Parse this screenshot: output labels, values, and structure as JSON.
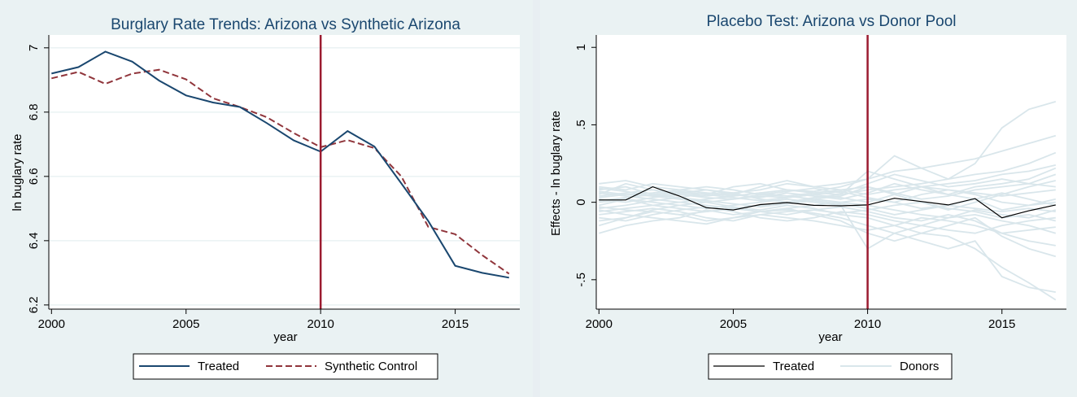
{
  "colors": {
    "treated_left": "#1a476f",
    "synthetic": "#90353b",
    "treatment_line": "#9b1b30",
    "treated_right": "#000000",
    "donors": "#d9e6eb",
    "title": "#1a476f",
    "grid": "#eaf2f3",
    "plot_bg": "#ffffff",
    "outer_bg": "#eaf2f3"
  },
  "chart_data": [
    {
      "type": "line",
      "title": "Burglary Rate Trends: Arizona vs Synthetic Arizona",
      "xlabel": "year",
      "ylabel": "ln buglary rate",
      "xlim": [
        1999.9,
        2017.4
      ],
      "ylim": [
        6.187,
        7.04
      ],
      "xticks": [
        2000,
        2005,
        2010,
        2015
      ],
      "xtick_labels": [
        "2000",
        "2005",
        "2010",
        "2015"
      ],
      "yticks": [
        6.2,
        6.4,
        6.6,
        6.8,
        7.0
      ],
      "ytick_labels": [
        "6.2",
        "6.4",
        "6.6",
        "6.8",
        "7"
      ],
      "grid": true,
      "treatment_year": 2010,
      "legend_position": "bottom",
      "x": [
        2000,
        2001,
        2002,
        2003,
        2004,
        2005,
        2006,
        2007,
        2008,
        2009,
        2010,
        2011,
        2012,
        2013,
        2014,
        2015,
        2016,
        2017
      ],
      "series": [
        {
          "name": "Treated",
          "style": "solid",
          "values": [
            6.92,
            6.94,
            6.988,
            6.957,
            6.898,
            6.852,
            6.83,
            6.816,
            6.766,
            6.712,
            6.677,
            6.741,
            6.693,
            6.578,
            6.461,
            6.322,
            6.3,
            6.285
          ]
        },
        {
          "name": "Synthetic Control",
          "style": "dashed",
          "values": [
            6.905,
            6.925,
            6.888,
            6.92,
            6.932,
            6.902,
            6.843,
            6.816,
            6.784,
            6.735,
            6.691,
            6.713,
            6.688,
            6.6,
            6.443,
            6.42,
            6.355,
            6.297
          ]
        }
      ]
    },
    {
      "type": "line",
      "title": "Placebo Test: Arizona vs Donor Pool",
      "xlabel": "year",
      "ylabel": "Effects - ln buglary rate",
      "xlim": [
        1999.9,
        2017.4
      ],
      "ylim": [
        -0.69,
        1.08
      ],
      "xticks": [
        2000,
        2005,
        2010,
        2015
      ],
      "xtick_labels": [
        "2000",
        "2005",
        "2010",
        "2015"
      ],
      "yticks": [
        -0.5,
        0,
        0.5,
        1
      ],
      "ytick_labels": [
        "-.5",
        "0",
        ".5",
        "1"
      ],
      "grid": false,
      "treatment_year": 2010,
      "legend_position": "bottom",
      "x": [
        2000,
        2001,
        2002,
        2003,
        2004,
        2005,
        2006,
        2007,
        2008,
        2009,
        2010,
        2011,
        2012,
        2013,
        2014,
        2015,
        2016,
        2017
      ],
      "series": [
        {
          "name": "Treated",
          "values": [
            0.015,
            0.015,
            0.1,
            0.04,
            -0.035,
            -0.05,
            -0.015,
            -0.002,
            -0.02,
            -0.023,
            -0.017,
            0.026,
            0.005,
            -0.017,
            0.024,
            -0.1,
            -0.055,
            -0.017
          ]
        },
        {
          "name": "Donors",
          "lines": [
            [
              0.08,
              0.1,
              0.05,
              0.03,
              0.06,
              0.04,
              0.06,
              0.08,
              0.07,
              0.1,
              0.15,
              0.3,
              0.22,
              0.15,
              0.25,
              0.48,
              0.6,
              0.65
            ],
            [
              -0.2,
              -0.15,
              -0.12,
              -0.1,
              -0.05,
              -0.08,
              -0.06,
              -0.05,
              -0.07,
              -0.1,
              -0.15,
              -0.2,
              -0.25,
              -0.3,
              -0.25,
              -0.48,
              -0.55,
              -0.58
            ],
            [
              -0.12,
              -0.1,
              -0.05,
              -0.02,
              0.0,
              -0.03,
              -0.05,
              -0.02,
              -0.04,
              -0.08,
              -0.1,
              -0.15,
              -0.2,
              -0.22,
              -0.3,
              -0.42,
              -0.52,
              -0.63
            ],
            [
              0.1,
              0.08,
              0.12,
              0.1,
              0.08,
              0.06,
              0.08,
              0.12,
              0.1,
              0.12,
              0.15,
              0.2,
              0.22,
              0.25,
              0.28,
              0.33,
              0.38,
              0.43
            ],
            [
              0.05,
              0.12,
              0.08,
              0.06,
              0.05,
              0.1,
              0.12,
              0.08,
              0.06,
              0.05,
              0.08,
              0.1,
              0.12,
              0.15,
              0.18,
              0.2,
              0.25,
              0.32
            ],
            [
              -0.05,
              -0.08,
              -0.1,
              -0.12,
              -0.14,
              -0.1,
              -0.08,
              -0.1,
              -0.12,
              -0.15,
              -0.18,
              -0.15,
              -0.1,
              -0.12,
              -0.15,
              -0.2,
              -0.25,
              -0.28
            ],
            [
              0.12,
              0.14,
              0.1,
              0.08,
              0.06,
              0.05,
              0.1,
              0.14,
              0.1,
              0.08,
              0.05,
              0.08,
              0.1,
              0.12,
              0.14,
              0.18,
              0.2,
              0.24
            ],
            [
              0.0,
              0.02,
              -0.02,
              -0.04,
              -0.06,
              -0.04,
              -0.02,
              0.0,
              0.02,
              0.0,
              -0.02,
              -0.05,
              -0.08,
              -0.1,
              -0.08,
              -0.12,
              -0.15,
              -0.2
            ],
            [
              0.03,
              0.05,
              0.04,
              0.06,
              0.08,
              0.05,
              0.03,
              0.06,
              0.04,
              0.02,
              0.06,
              0.12,
              0.08,
              0.05,
              0.1,
              0.12,
              0.15,
              0.22
            ],
            [
              -0.08,
              -0.06,
              -0.04,
              -0.06,
              -0.1,
              -0.12,
              -0.08,
              -0.06,
              -0.05,
              -0.07,
              -0.05,
              -0.02,
              0.0,
              -0.04,
              -0.06,
              -0.1,
              -0.08,
              -0.12
            ],
            [
              0.06,
              0.04,
              0.02,
              0.0,
              0.02,
              0.04,
              0.06,
              0.04,
              0.02,
              0.04,
              0.1,
              0.06,
              0.02,
              0.04,
              0.08,
              0.1,
              0.12,
              0.18
            ],
            [
              -0.03,
              -0.05,
              -0.06,
              -0.08,
              -0.06,
              -0.04,
              -0.06,
              -0.08,
              -0.05,
              -0.03,
              -0.06,
              -0.1,
              -0.12,
              -0.08,
              -0.12,
              -0.2,
              -0.18,
              -0.16
            ],
            [
              0.04,
              0.06,
              0.08,
              0.05,
              0.03,
              0.02,
              0.04,
              0.03,
              0.05,
              0.07,
              0.03,
              0.0,
              0.05,
              0.08,
              0.06,
              0.04,
              0.06,
              0.08
            ],
            [
              -0.1,
              -0.12,
              -0.08,
              -0.05,
              -0.03,
              -0.06,
              -0.1,
              -0.12,
              -0.1,
              -0.06,
              -0.08,
              -0.12,
              -0.15,
              -0.18,
              -0.2,
              -0.15,
              -0.12,
              -0.1
            ],
            [
              0.02,
              0.0,
              0.03,
              0.05,
              0.04,
              0.06,
              0.02,
              0.0,
              0.03,
              0.05,
              0.2,
              0.15,
              0.1,
              0.05,
              0.02,
              -0.05,
              -0.02,
              0.02
            ],
            [
              -0.02,
              0.02,
              0.0,
              -0.02,
              -0.04,
              -0.02,
              0.0,
              0.02,
              0.0,
              -0.02,
              -0.3,
              -0.2,
              -0.15,
              -0.1,
              -0.05,
              -0.08,
              -0.1,
              -0.05
            ],
            [
              0.07,
              0.05,
              0.06,
              0.08,
              0.1,
              0.08,
              0.05,
              0.04,
              0.06,
              0.08,
              0.1,
              0.05,
              0.0,
              -0.05,
              0.0,
              0.05,
              0.1,
              0.14
            ],
            [
              -0.06,
              -0.04,
              -0.02,
              0.0,
              -0.02,
              -0.04,
              -0.06,
              -0.04,
              -0.02,
              0.0,
              0.02,
              0.0,
              -0.04,
              -0.02,
              -0.04,
              -0.06,
              -0.04,
              -0.06
            ],
            [
              0.09,
              0.07,
              0.04,
              0.02,
              0.0,
              0.02,
              0.05,
              0.07,
              0.09,
              0.06,
              0.12,
              0.18,
              0.14,
              0.1,
              0.12,
              0.15,
              0.12,
              0.1
            ],
            [
              -0.15,
              -0.1,
              -0.06,
              -0.08,
              -0.12,
              -0.1,
              -0.06,
              -0.04,
              -0.08,
              -0.12,
              -0.2,
              -0.25,
              -0.2,
              -0.15,
              -0.1,
              -0.22,
              -0.3,
              -0.35
            ],
            [
              0.01,
              0.03,
              0.05,
              0.07,
              0.05,
              0.03,
              0.01,
              0.03,
              0.05,
              0.03,
              0.0,
              0.05,
              0.1,
              0.08,
              0.05,
              0.0,
              -0.02,
              0.0
            ],
            [
              -0.04,
              -0.02,
              0.01,
              0.03,
              0.01,
              -0.01,
              -0.03,
              -0.01,
              0.01,
              -0.01,
              -0.04,
              -0.08,
              -0.05,
              -0.02,
              0.02,
              0.06,
              0.02,
              -0.02
            ]
          ]
        }
      ]
    }
  ]
}
